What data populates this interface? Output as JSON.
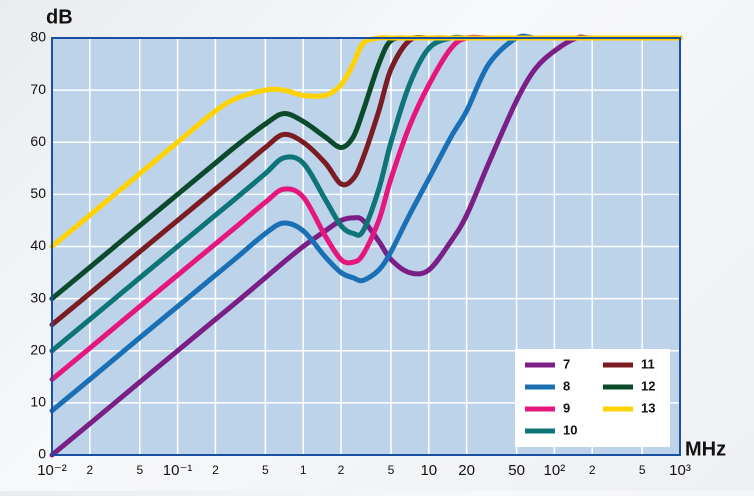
{
  "chart_data": {
    "type": "line",
    "xscale": "log",
    "y_label": "dB",
    "x_label": "MHz",
    "x": [
      0.01,
      0.02,
      0.05,
      0.1,
      0.2,
      0.3,
      0.5,
      0.7,
      1,
      1.5,
      2,
      2.5,
      3,
      4,
      5,
      7,
      10,
      15,
      20,
      30,
      50,
      70,
      100,
      150,
      200,
      500,
      1000
    ],
    "series": [
      {
        "name": "7",
        "color": "#7b1f86",
        "values": [
          0,
          6,
          14,
          20,
          26,
          29.5,
          34,
          37,
          40,
          43,
          45,
          45.5,
          45,
          41,
          37.5,
          35,
          35.5,
          41,
          46,
          56,
          68,
          74,
          77.5,
          80,
          80,
          80,
          80
        ]
      },
      {
        "name": "8",
        "color": "#1a6fb5",
        "values": [
          8.5,
          14.5,
          22.5,
          28.5,
          34.5,
          38,
          42.5,
          44.5,
          43,
          38,
          35,
          34,
          33.5,
          35.5,
          39,
          46,
          53,
          61,
          66,
          75,
          80,
          80,
          80,
          80,
          80,
          80,
          80
        ]
      },
      {
        "name": "9",
        "color": "#e5177e",
        "values": [
          14.5,
          20.5,
          28.5,
          34.5,
          40.5,
          44,
          48.5,
          51,
          49.5,
          42,
          37.5,
          37,
          38.5,
          45,
          53,
          63,
          71,
          78,
          80,
          80,
          80,
          80,
          80,
          80,
          80,
          80,
          80
        ]
      },
      {
        "name": "10",
        "color": "#0e7478",
        "values": [
          20,
          26,
          34,
          40,
          46,
          49.5,
          54,
          57,
          56,
          49,
          44,
          42.5,
          43,
          51,
          60,
          71,
          78,
          80,
          80,
          80,
          80,
          80,
          80,
          80,
          80,
          80,
          80
        ]
      },
      {
        "name": "11",
        "color": "#7a1c22",
        "values": [
          25,
          31,
          39,
          45,
          51,
          54.5,
          59,
          61.5,
          60,
          56,
          52,
          53,
          57,
          66,
          74,
          79.5,
          80,
          80,
          80,
          80,
          80,
          80,
          80,
          80,
          80,
          80,
          80
        ]
      },
      {
        "name": "12",
        "color": "#0b4a2a",
        "values": [
          30,
          36,
          44,
          50,
          56,
          59.5,
          63.5,
          65.5,
          64,
          61,
          59,
          61,
          66,
          75,
          79.5,
          80,
          80,
          80,
          80,
          80,
          80,
          80,
          80,
          80,
          80,
          80,
          80
        ]
      },
      {
        "name": "13",
        "color": "#ffd200",
        "values": [
          40,
          46,
          54,
          60,
          66,
          68.5,
          70,
          70,
          69,
          69,
          71,
          75,
          79,
          80,
          80,
          80,
          80,
          80,
          80,
          80,
          80,
          80,
          80,
          80,
          80,
          80,
          80
        ]
      }
    ],
    "xlim": [
      0.01,
      1000
    ],
    "ylim": [
      0,
      80
    ],
    "xticks": [
      {
        "value": 0.01,
        "label": "10⁻²"
      },
      {
        "value": 0.02,
        "label": "2"
      },
      {
        "value": 0.05,
        "label": "5"
      },
      {
        "value": 0.1,
        "label": "10⁻¹"
      },
      {
        "value": 0.2,
        "label": "2"
      },
      {
        "value": 0.5,
        "label": "5"
      },
      1,
      2,
      5,
      10,
      20,
      50,
      {
        "value": 100,
        "label": "10²"
      },
      {
        "value": 200,
        "label": "2"
      },
      {
        "value": 500,
        "label": "5"
      },
      {
        "value": 1000,
        "label": "10³"
      }
    ],
    "yticks": [
      0,
      10,
      20,
      30,
      40,
      50,
      60,
      70,
      80
    ],
    "grid": true,
    "legend": "lower right"
  }
}
